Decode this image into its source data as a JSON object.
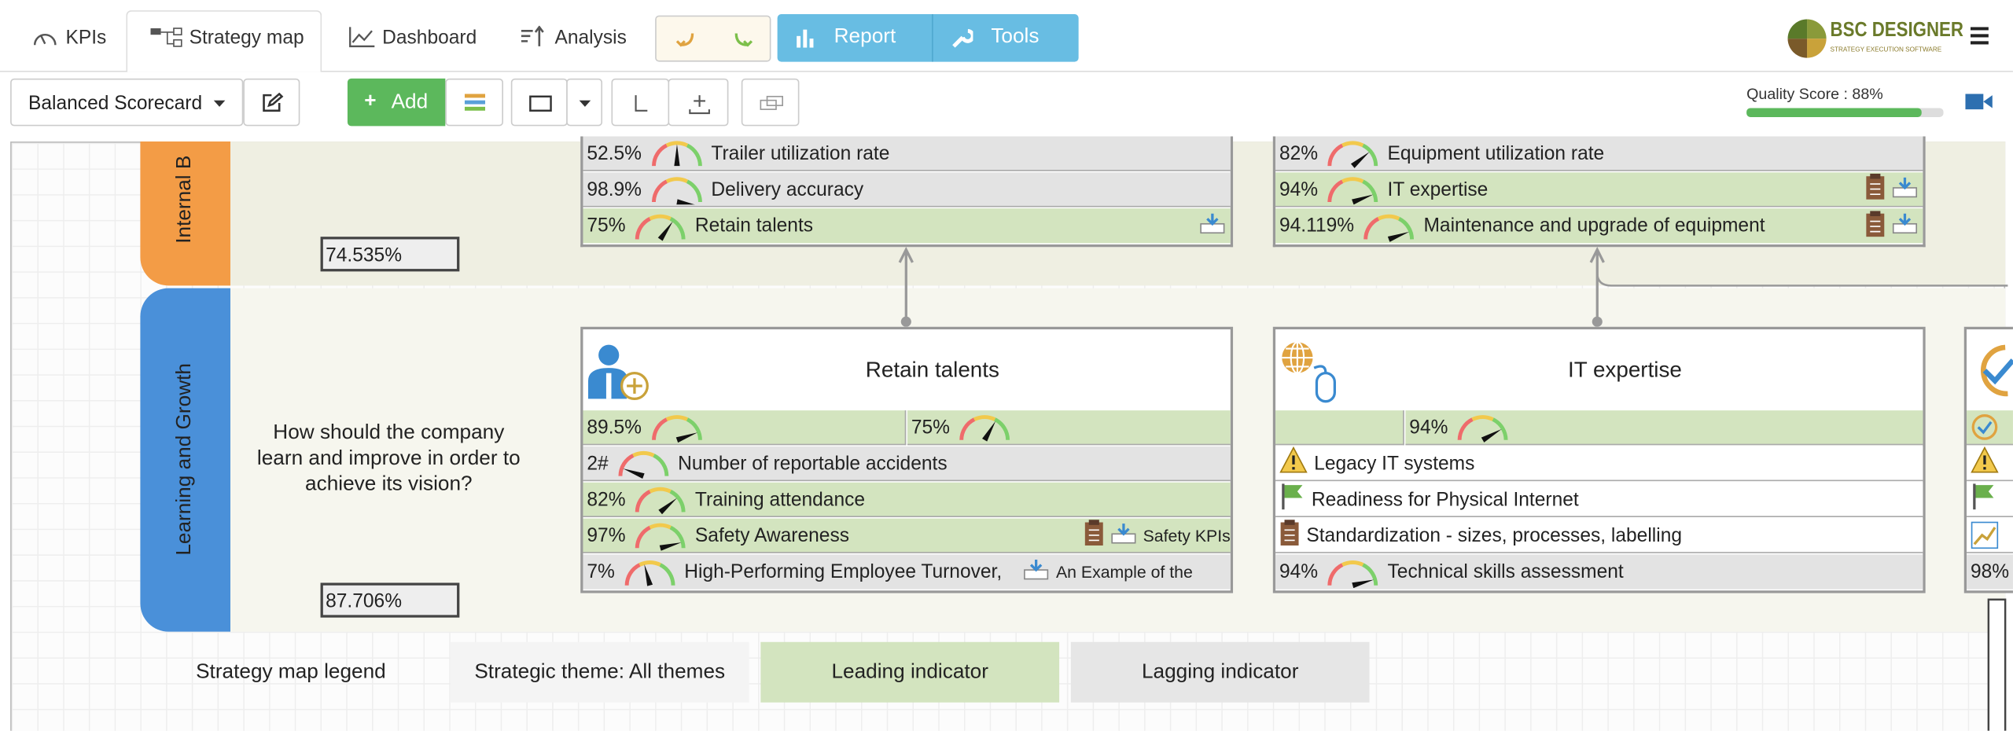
{
  "nav": {
    "tabs": [
      "KPIs",
      "Strategy map",
      "Dashboard",
      "Analysis"
    ],
    "report": "Report",
    "tools": "Tools",
    "logo": "BSC DESIGNER",
    "logo_sub": "STRATEGY EXECUTION SOFTWARE"
  },
  "toolbar": {
    "scorecard": "Balanced Scorecard",
    "add": "Add",
    "quality": "Quality Score : 88%"
  },
  "perspectives": [
    {
      "name": "Internal B",
      "score": "74.535%"
    },
    {
      "name": "Learning and Growth",
      "question": "How should the company learn and improve in order to achieve its vision?",
      "score": "87.706%"
    }
  ],
  "upper_left": {
    "rows": [
      {
        "value": "52.5%",
        "label": "Trailer utilization rate"
      },
      {
        "value": "98.9%",
        "label": "Delivery accuracy"
      },
      {
        "value": "75%",
        "label": "Retain talents"
      }
    ]
  },
  "upper_right": {
    "rows": [
      {
        "value": "82%",
        "label": "Equipment utilization rate"
      },
      {
        "value": "94%",
        "label": "IT expertise"
      },
      {
        "value": "94.119%",
        "label": "Maintenance and upgrade of equipment"
      }
    ]
  },
  "retain": {
    "title": "Retain talents",
    "split": [
      "89.5%",
      "75%"
    ],
    "rows": [
      {
        "value": "2#",
        "label": "Number of reportable accidents"
      },
      {
        "value": "82%",
        "label": "Training attendance"
      },
      {
        "value": "97%",
        "label": "Safety Awareness",
        "link": "Safety KPIs"
      },
      {
        "value": "7%",
        "label": "High-Performing Employee Turnover,",
        "link": "An Example of the"
      }
    ]
  },
  "it": {
    "title": "IT expertise",
    "split": "94%",
    "rows": [
      {
        "label": "Legacy IT systems"
      },
      {
        "label": "Readiness for Physical Internet"
      },
      {
        "label": "Standardization - sizes, processes, labelling"
      },
      {
        "value": "94%",
        "label": "Technical skills assessment"
      }
    ]
  },
  "right_box": {
    "value": "98%"
  },
  "legend": {
    "title": "Strategy map legend",
    "theme": "Strategic theme: All themes",
    "leading": "Leading indicator",
    "lagging": "Lagging indicator"
  }
}
